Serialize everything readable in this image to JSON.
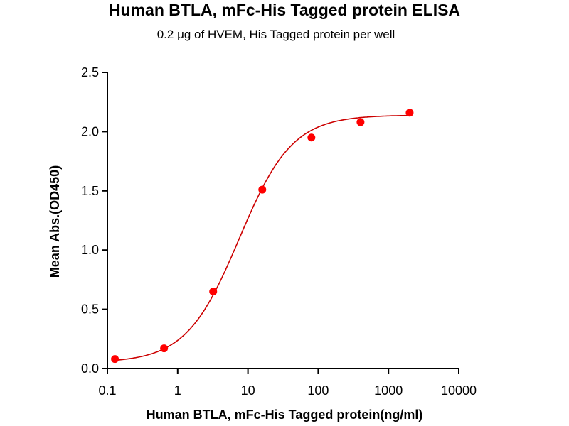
{
  "chart_data": {
    "type": "scatter",
    "title": "Human BTLA, mFc-His Tagged protein ELISA",
    "subtitle": "0.2 μg of HVEM, His Tagged protein per well",
    "xlabel": "Human BTLA, mFc-His Tagged protein(ng/ml)",
    "ylabel": "Mean Abs.(OD450)",
    "xscale": "log",
    "xlim": [
      0.1,
      10000
    ],
    "ylim": [
      0,
      2.5
    ],
    "xticks": [
      "0.1",
      "1",
      "10",
      "100",
      "1000",
      "10000"
    ],
    "xtick_values": [
      0.1,
      1,
      10,
      100,
      1000,
      10000
    ],
    "yticks": [
      "0.0",
      "0.5",
      "1.0",
      "1.5",
      "2.0",
      "2.5"
    ],
    "ytick_values": [
      0,
      0.5,
      1.0,
      1.5,
      2.0,
      2.5
    ],
    "grid": false,
    "series": [
      {
        "x": [
          0.128,
          0.64,
          3.2,
          16,
          80,
          400,
          2000
        ],
        "y": [
          0.08,
          0.17,
          0.65,
          1.51,
          1.95,
          2.08,
          2.16
        ],
        "color": "#ff0000",
        "fit": {
          "model": "4PL",
          "bottom": 0.05,
          "top": 2.14,
          "ec50": 7.5,
          "hill": 1.15,
          "color": "#cc0000"
        }
      }
    ]
  }
}
